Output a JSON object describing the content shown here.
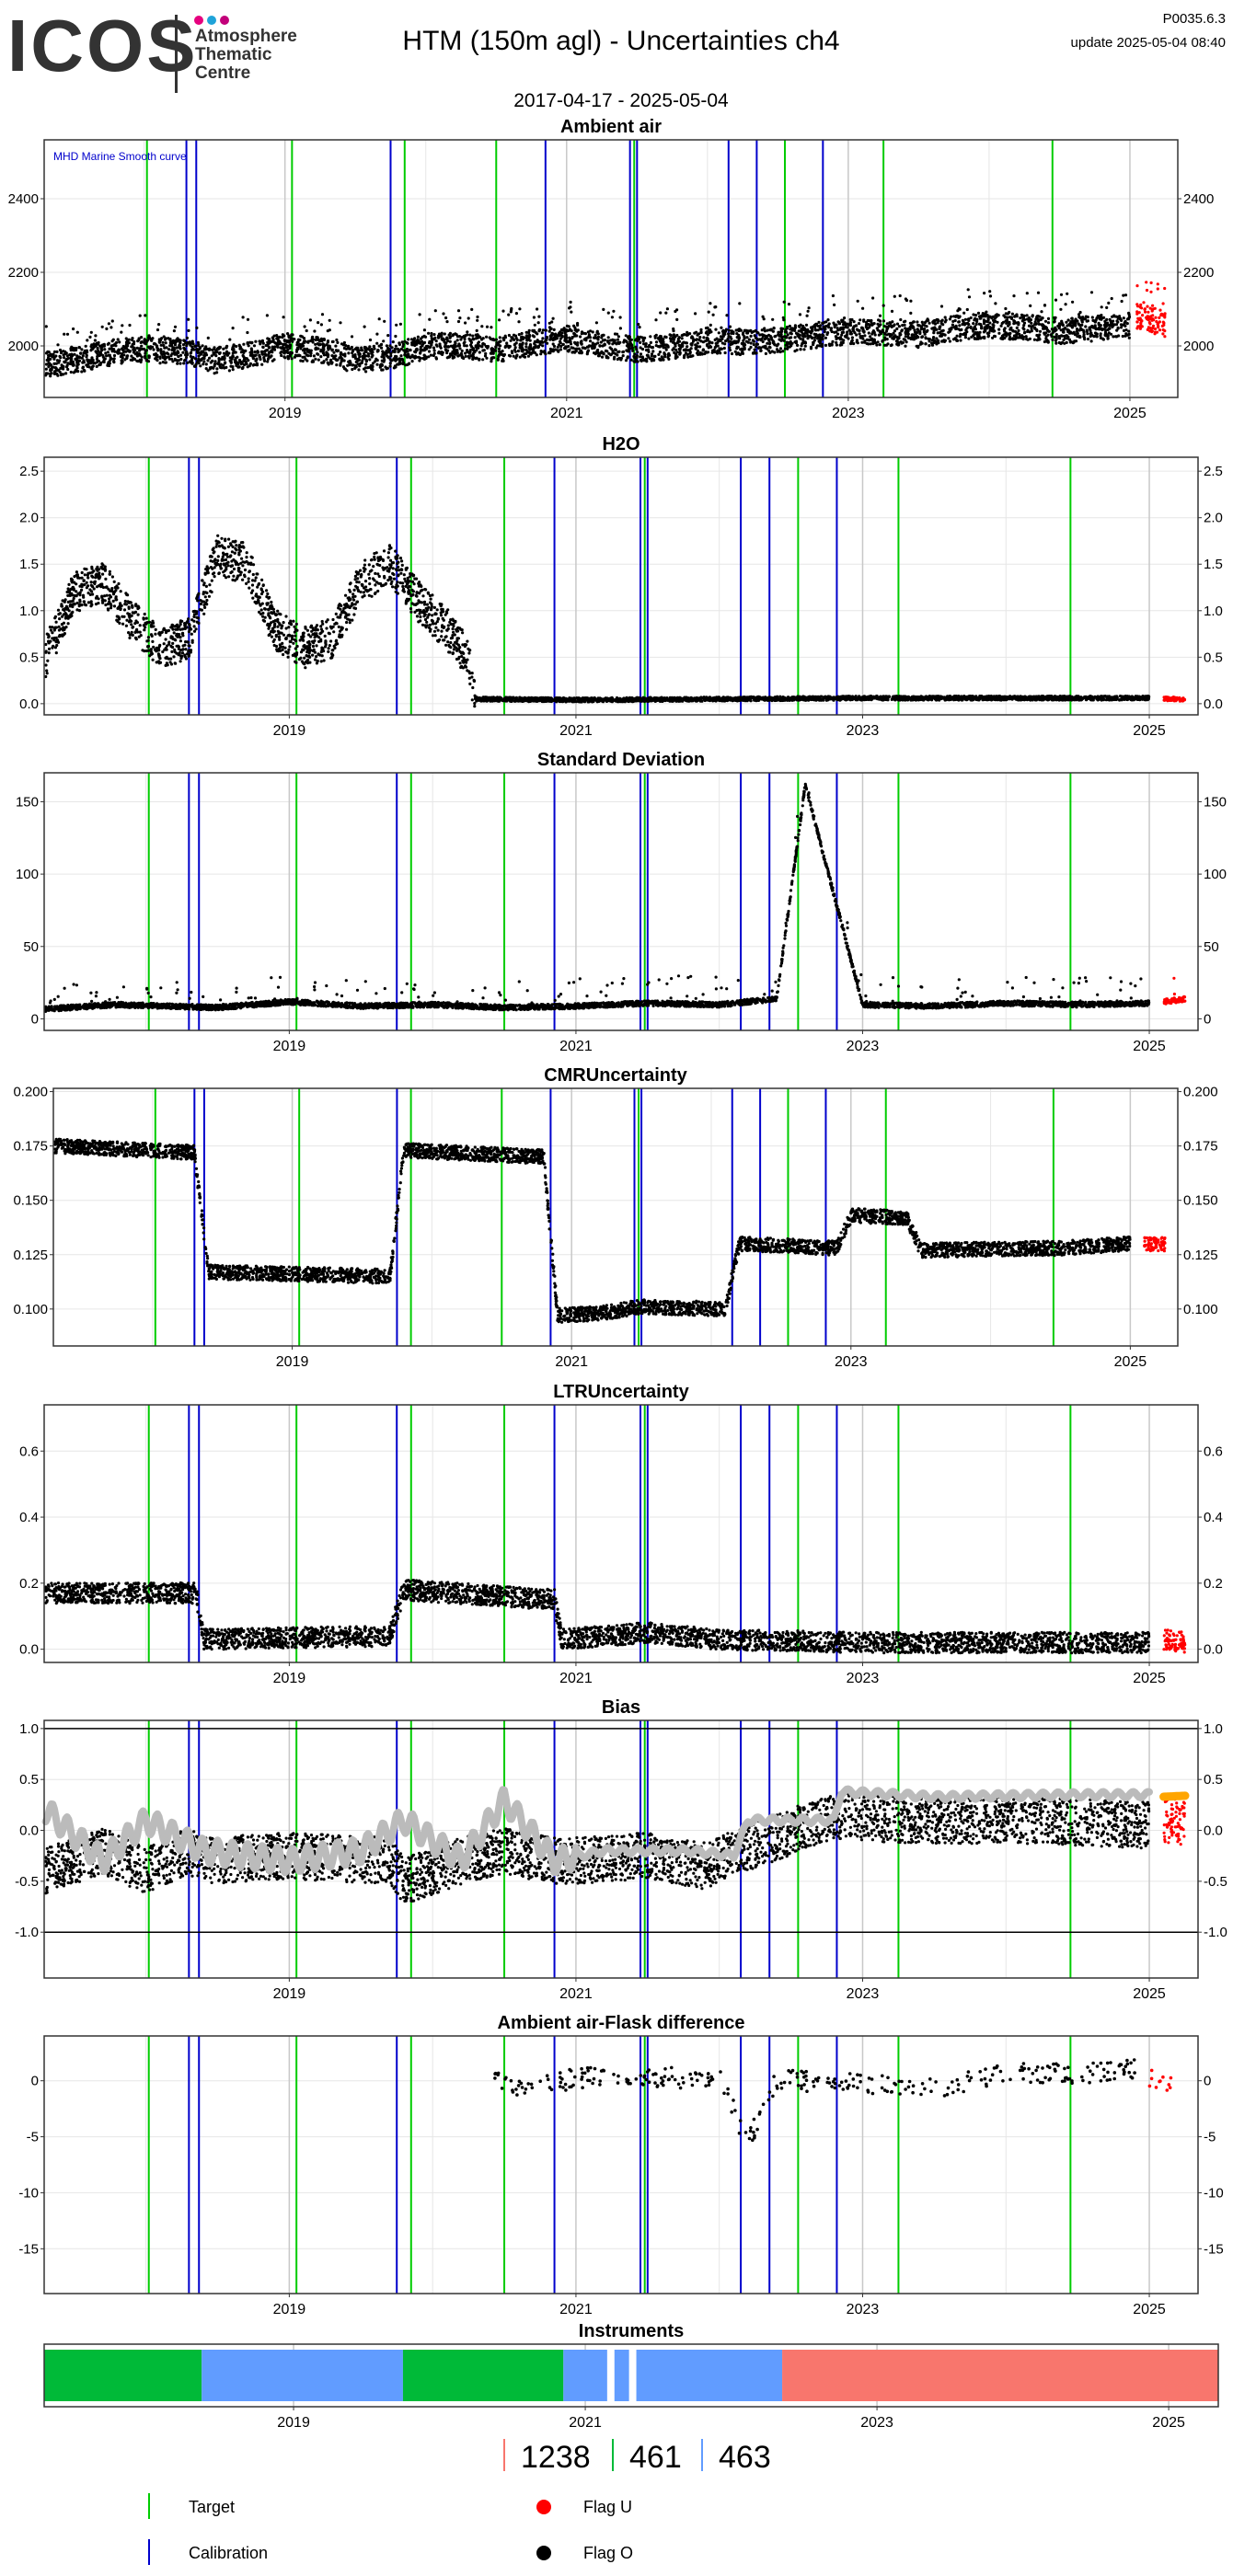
{
  "header": {
    "logo": "ICOS",
    "org_lines": [
      "Atmosphere",
      "Thematic",
      "Centre"
    ],
    "title": "HTM  (150m agl) - Uncertainties ch4",
    "date_range": "2017-04-17 - 2025-05-04",
    "version": "P0035.6.3",
    "update": "update  2025-05-04 08:40"
  },
  "colors": {
    "data": "#000000",
    "recent": "#ff0000",
    "target": "#00cc00",
    "calibration": "#0000cc",
    "bias_smooth": "#bbbbbb",
    "bias_smooth_recent": "#ffa500",
    "grid": "#e6e6e6",
    "year_grid": "#c8c8c8",
    "instrument_1238": "#f8766d",
    "instrument_461": "#00ba38",
    "instrument_463": "#619cff"
  },
  "events": {
    "target": [
      2018.02,
      2019.05,
      2019.85,
      2020.5,
      2021.48,
      2022.55,
      2023.25,
      2024.45
    ],
    "calibration": [
      2018.3,
      2018.37,
      2019.75,
      2020.85,
      2021.45,
      2021.5,
      2022.15,
      2022.35,
      2022.82
    ]
  },
  "chart_data": [
    {
      "id": "ambient",
      "type": "scatter",
      "title": "Ambient air",
      "annotation": "MHD Marine Smooth curve",
      "x_range": [
        2017.29,
        2025.34
      ],
      "ylim": [
        1860,
        2560
      ],
      "yticks": [
        "2000",
        "2200",
        "2400"
      ],
      "xticks": [
        "2019",
        "2021",
        "2023",
        "2025"
      ],
      "grid": true,
      "series": [
        {
          "values": [
            [
              2017.3,
              1950
            ],
            [
              2017.5,
              1960
            ],
            [
              2017.8,
              1985
            ],
            [
              2018.0,
              1990
            ],
            [
              2018.3,
              1985
            ],
            [
              2018.5,
              1960
            ],
            [
              2018.8,
              1980
            ],
            [
              2019.0,
              2000
            ],
            [
              2019.3,
              1985
            ],
            [
              2019.5,
              1960
            ],
            [
              2019.8,
              1975
            ],
            [
              2020.0,
              2000
            ],
            [
              2020.3,
              2000
            ],
            [
              2020.5,
              1990
            ],
            [
              2020.8,
              2010
            ],
            [
              2021.0,
              2020
            ],
            [
              2021.3,
              2000
            ],
            [
              2021.5,
              1990
            ],
            [
              2021.8,
              2000
            ],
            [
              2022.0,
              2015
            ],
            [
              2022.3,
              2010
            ],
            [
              2022.6,
              2020
            ],
            [
              2022.8,
              2030
            ],
            [
              2023.0,
              2040
            ],
            [
              2023.3,
              2035
            ],
            [
              2023.5,
              2030
            ],
            [
              2023.8,
              2050
            ],
            [
              2024.0,
              2055
            ],
            [
              2024.3,
              2050
            ],
            [
              2024.5,
              2040
            ],
            [
              2024.8,
              2050
            ],
            [
              2025.0,
              2055
            ]
          ]
        },
        {
          "name": "",
          "recent": true,
          "values": [
            [
              2025.05,
              2080
            ],
            [
              2025.15,
              2070
            ],
            [
              2025.25,
              2060
            ]
          ]
        }
      ]
    },
    {
      "id": "h2o",
      "type": "scatter",
      "title": "H2O",
      "x_range": [
        2017.29,
        2025.34
      ],
      "ylim": [
        -0.12,
        2.65
      ],
      "yticks": [
        "0.0",
        "0.5",
        "1.0",
        "1.5",
        "2.0",
        "2.5"
      ],
      "xticks": [
        "2019",
        "2021",
        "2023",
        "2025"
      ],
      "grid": true,
      "series": [
        {
          "values": [
            [
              2017.3,
              0.5
            ],
            [
              2017.5,
              1.2
            ],
            [
              2017.7,
              1.3
            ],
            [
              2017.9,
              0.9
            ],
            [
              2018.1,
              0.6
            ],
            [
              2018.3,
              0.7
            ],
            [
              2018.5,
              1.6
            ],
            [
              2018.7,
              1.5
            ],
            [
              2018.9,
              0.8
            ],
            [
              2019.1,
              0.6
            ],
            [
              2019.3,
              0.7
            ],
            [
              2019.5,
              1.3
            ],
            [
              2019.7,
              1.5
            ],
            [
              2019.9,
              1.1
            ],
            [
              2020.1,
              0.8
            ],
            [
              2020.25,
              0.5
            ],
            [
              2020.3,
              0.05
            ],
            [
              2021.0,
              0.04
            ],
            [
              2022.0,
              0.05
            ],
            [
              2023.0,
              0.06
            ],
            [
              2024.0,
              0.06
            ],
            [
              2025.0,
              0.06
            ]
          ]
        },
        {
          "name": "",
          "recent": true,
          "values": [
            [
              2025.1,
              0.05
            ],
            [
              2025.25,
              0.05
            ]
          ]
        }
      ]
    },
    {
      "id": "stddev",
      "type": "scatter",
      "title": "Standard Deviation",
      "x_range": [
        2017.29,
        2025.34
      ],
      "ylim": [
        -8,
        170
      ],
      "yticks": [
        "0",
        "50",
        "100",
        "150"
      ],
      "xticks": [
        "2019",
        "2021",
        "2023",
        "2025"
      ],
      "grid": true,
      "series": [
        {
          "values": [
            [
              2017.3,
              5
            ],
            [
              2017.8,
              8
            ],
            [
              2018.5,
              6
            ],
            [
              2019.0,
              10
            ],
            [
              2019.5,
              7
            ],
            [
              2020.0,
              8
            ],
            [
              2020.5,
              6
            ],
            [
              2021.0,
              7
            ],
            [
              2021.5,
              9
            ],
            [
              2022.0,
              8
            ],
            [
              2022.4,
              12
            ],
            [
              2022.6,
              160
            ],
            [
              2023.0,
              8
            ],
            [
              2023.5,
              7
            ],
            [
              2024.0,
              9
            ],
            [
              2024.5,
              8
            ],
            [
              2025.0,
              9
            ]
          ]
        },
        {
          "name": "",
          "recent": true,
          "values": [
            [
              2025.1,
              10
            ],
            [
              2025.25,
              12
            ]
          ]
        }
      ]
    },
    {
      "id": "cmr",
      "type": "scatter",
      "title": "CMRUncertainty",
      "x_range": [
        2017.29,
        2025.34
      ],
      "ylim": [
        0.083,
        0.2015
      ],
      "yticks": [
        "0.100",
        "0.125",
        "0.150",
        "0.175",
        "0.200"
      ],
      "xticks": [
        "2019",
        "2021",
        "2023",
        "2025"
      ],
      "grid": true,
      "series": [
        {
          "values": [
            [
              2017.3,
              0.175
            ],
            [
              2018.3,
              0.172
            ],
            [
              2018.4,
              0.117
            ],
            [
              2019.7,
              0.115
            ],
            [
              2019.8,
              0.173
            ],
            [
              2020.8,
              0.17
            ],
            [
              2020.9,
              0.097
            ],
            [
              2021.2,
              0.098
            ],
            [
              2021.5,
              0.101
            ],
            [
              2022.1,
              0.1
            ],
            [
              2022.2,
              0.13
            ],
            [
              2022.9,
              0.128
            ],
            [
              2023.0,
              0.143
            ],
            [
              2023.4,
              0.142
            ],
            [
              2023.5,
              0.127
            ],
            [
              2024.5,
              0.128
            ],
            [
              2025.0,
              0.13
            ]
          ]
        },
        {
          "name": "",
          "recent": true,
          "values": [
            [
              2025.1,
              0.13
            ],
            [
              2025.25,
              0.13
            ]
          ]
        }
      ]
    },
    {
      "id": "ltr",
      "type": "scatter",
      "title": "LTRUncertainty",
      "x_range": [
        2017.29,
        2025.34
      ],
      "ylim": [
        -0.04,
        0.74
      ],
      "yticks": [
        "0.0",
        "0.2",
        "0.4",
        "0.6"
      ],
      "xticks": [
        "2019",
        "2021",
        "2023",
        "2025"
      ],
      "grid": true,
      "series": [
        {
          "values": [
            [
              2017.3,
              0.17
            ],
            [
              2018.35,
              0.17
            ],
            [
              2018.4,
              0.03
            ],
            [
              2019.7,
              0.04
            ],
            [
              2019.8,
              0.18
            ],
            [
              2020.85,
              0.15
            ],
            [
              2020.9,
              0.03
            ],
            [
              2021.5,
              0.05
            ],
            [
              2022.0,
              0.03
            ],
            [
              2023.0,
              0.02
            ],
            [
              2024.0,
              0.02
            ],
            [
              2025.0,
              0.02
            ]
          ]
        },
        {
          "name": "",
          "recent": true,
          "values": [
            [
              2025.1,
              0.03
            ],
            [
              2025.25,
              0.02
            ]
          ]
        }
      ]
    },
    {
      "id": "bias",
      "type": "scatter",
      "title": "Bias",
      "x_range": [
        2017.29,
        2025.34
      ],
      "ylim": [
        -1.45,
        1.08
      ],
      "yticks": [
        "-1.0",
        "-0.5",
        "0.0",
        "0.5",
        "1.0"
      ],
      "xticks": [
        "2019",
        "2021",
        "2023",
        "2025"
      ],
      "hlines": [
        1.0,
        -1.0
      ],
      "grid": true,
      "series": [
        {
          "values": [
            [
              2017.3,
              -0.4
            ],
            [
              2017.7,
              -0.2
            ],
            [
              2018.0,
              -0.4
            ],
            [
              2018.3,
              -0.2
            ],
            [
              2018.4,
              -0.3
            ],
            [
              2019.0,
              -0.25
            ],
            [
              2019.7,
              -0.3
            ],
            [
              2019.8,
              -0.5
            ],
            [
              2020.2,
              -0.3
            ],
            [
              2020.5,
              -0.2
            ],
            [
              2020.85,
              -0.3
            ],
            [
              2021.0,
              -0.3
            ],
            [
              2021.5,
              -0.25
            ],
            [
              2021.9,
              -0.35
            ],
            [
              2022.1,
              -0.2
            ],
            [
              2022.35,
              -0.1
            ],
            [
              2022.8,
              0.15
            ],
            [
              2023.3,
              0.1
            ],
            [
              2024.0,
              0.1
            ],
            [
              2024.5,
              0.08
            ],
            [
              2025.0,
              0.05
            ]
          ]
        },
        {
          "values": [
            [
              2017.3,
              0.2
            ],
            [
              2017.7,
              -0.3
            ],
            [
              2018.0,
              0.1
            ],
            [
              2018.4,
              -0.2
            ],
            [
              2019.0,
              -0.3
            ],
            [
              2019.5,
              -0.2
            ],
            [
              2019.8,
              0.1
            ],
            [
              2020.2,
              -0.3
            ],
            [
              2020.5,
              0.3
            ],
            [
              2020.85,
              -0.3
            ],
            [
              2021.2,
              -0.2
            ],
            [
              2021.8,
              -0.2
            ],
            [
              2022.1,
              -0.25
            ],
            [
              2022.2,
              0.1
            ],
            [
              2022.8,
              0.1
            ],
            [
              2022.85,
              0.38
            ],
            [
              2023.5,
              0.33
            ],
            [
              2024.5,
              0.35
            ],
            [
              2025.0,
              0.35
            ]
          ]
        },
        {
          "name": "",
          "recent": true,
          "values": [
            [
              2025.1,
              0.1
            ],
            [
              2025.25,
              0.08
            ]
          ]
        },
        {
          "name": "",
          "recent_smooth": true,
          "values": [
            [
              2025.1,
              0.33
            ],
            [
              2025.25,
              0.34
            ]
          ]
        }
      ]
    },
    {
      "id": "flask",
      "type": "scatter",
      "title": "Ambient air-Flask difference",
      "x_range": [
        2017.29,
        2025.34
      ],
      "ylim": [
        -19,
        4
      ],
      "yticks": [
        "-15",
        "-10",
        "-5",
        "0"
      ],
      "xticks": [
        "2019",
        "2021",
        "2023",
        "2025"
      ],
      "grid": true,
      "series": [
        {
          "values": [
            [
              2020.4,
              0.5
            ],
            [
              2020.6,
              -0.5
            ],
            [
              2021.0,
              0.2
            ],
            [
              2021.3,
              0.5
            ],
            [
              2021.6,
              0.3
            ],
            [
              2022.0,
              0.2
            ],
            [
              2022.2,
              -5.5
            ],
            [
              2022.4,
              0.1
            ],
            [
              2022.8,
              -0.2
            ],
            [
              2023.2,
              -0.3
            ],
            [
              2023.6,
              -0.5
            ],
            [
              2024.0,
              0.8
            ],
            [
              2024.4,
              0.6
            ],
            [
              2024.9,
              1.0
            ]
          ]
        },
        {
          "name": "",
          "recent": true,
          "values": [
            [
              2025.0,
              0.2
            ],
            [
              2025.15,
              -0.1
            ]
          ]
        }
      ]
    },
    {
      "id": "instruments",
      "type": "bar",
      "title": "Instruments",
      "x_range": [
        2017.29,
        2025.34
      ],
      "xticks": [
        "2019",
        "2021",
        "2023",
        "2025"
      ],
      "segments": [
        {
          "instrument": "461",
          "start": 2017.29,
          "end": 2018.37
        },
        {
          "instrument": "463",
          "start": 2018.37,
          "end": 2019.75
        },
        {
          "instrument": "461",
          "start": 2019.75,
          "end": 2020.85
        },
        {
          "instrument": "463",
          "start": 2020.85,
          "end": 2021.15
        },
        {
          "instrument": "463",
          "start": 2021.2,
          "end": 2021.3
        },
        {
          "instrument": "463",
          "start": 2021.35,
          "end": 2022.35
        },
        {
          "instrument": "1238",
          "start": 2022.35,
          "end": 2025.34
        }
      ]
    }
  ],
  "instrument_legend": [
    "1238",
    "461",
    "463"
  ],
  "legend": {
    "target": "Target",
    "calibration": "Calibration",
    "flag_u": "Flag U",
    "flag_o": "Flag O"
  }
}
